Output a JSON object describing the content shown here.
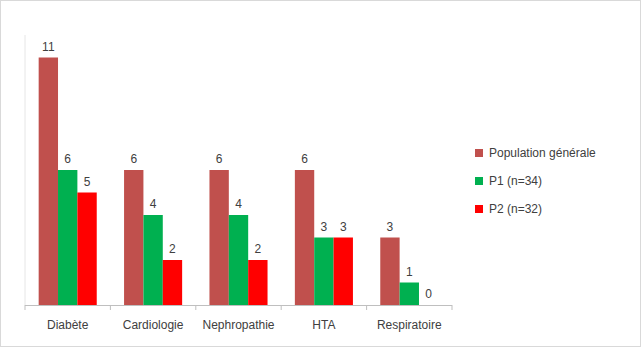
{
  "chart_data": {
    "type": "bar",
    "categories": [
      "Diabète",
      "Cardiologie",
      "Nephropathie",
      "HTA",
      "Respiratoire"
    ],
    "series": [
      {
        "name": "Population générale",
        "color": "#c0504d",
        "values": [
          11,
          6,
          6,
          6,
          3
        ]
      },
      {
        "name": "P1 (n=34)",
        "color": "#00b050",
        "values": [
          6,
          4,
          4,
          3,
          1
        ]
      },
      {
        "name": "P2 (n=32)",
        "color": "#ff0000",
        "values": [
          5,
          2,
          2,
          3,
          0
        ]
      }
    ],
    "ylim": [
      0,
      12
    ],
    "grid": false,
    "legend": "right",
    "data_labels": true,
    "tick_labels": "x"
  }
}
